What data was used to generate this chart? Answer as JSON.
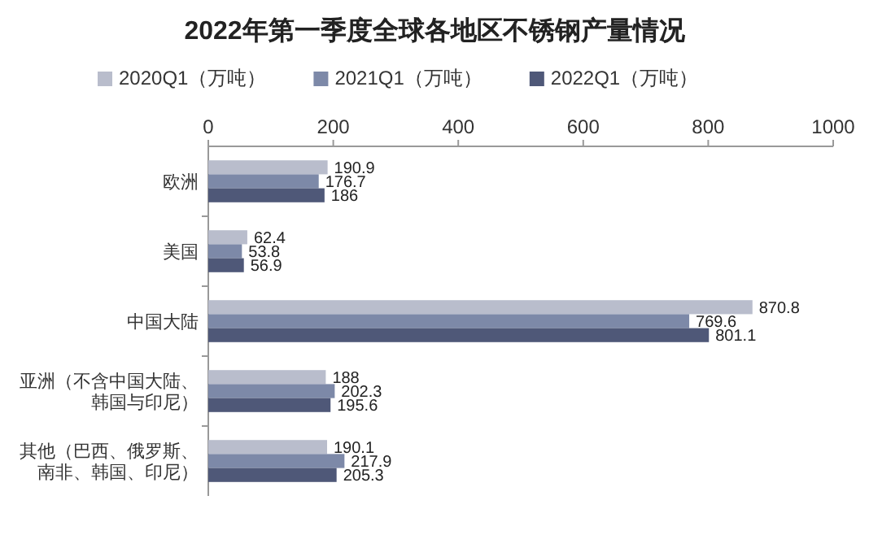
{
  "chart_data": {
    "type": "bar",
    "orientation": "horizontal",
    "title": "2022年第一季度全球各地区不锈钢产量情况",
    "categories": [
      "欧洲",
      "美国",
      "中国大陆",
      "亚洲（不含中国大陆、韩国与印尼）",
      "其他（巴西、俄罗斯、南非、韩国、印尼）"
    ],
    "series": [
      {
        "name": "2020Q1（万吨）",
        "color": "#b9bdcc",
        "values": [
          190.9,
          62.4,
          870.8,
          188,
          190.1
        ]
      },
      {
        "name": "2021Q1（万吨）",
        "color": "#7d89a8",
        "values": [
          176.7,
          53.8,
          769.6,
          202.3,
          217.9
        ]
      },
      {
        "name": "2022Q1（万吨）",
        "color": "#4f5878",
        "values": [
          186,
          56.9,
          801.1,
          195.6,
          205.3
        ]
      }
    ],
    "xlim": [
      0,
      1000
    ],
    "xticks": [
      0,
      200,
      400,
      600,
      800,
      1000
    ],
    "data_labels": true,
    "legend": "top",
    "grid": false
  }
}
